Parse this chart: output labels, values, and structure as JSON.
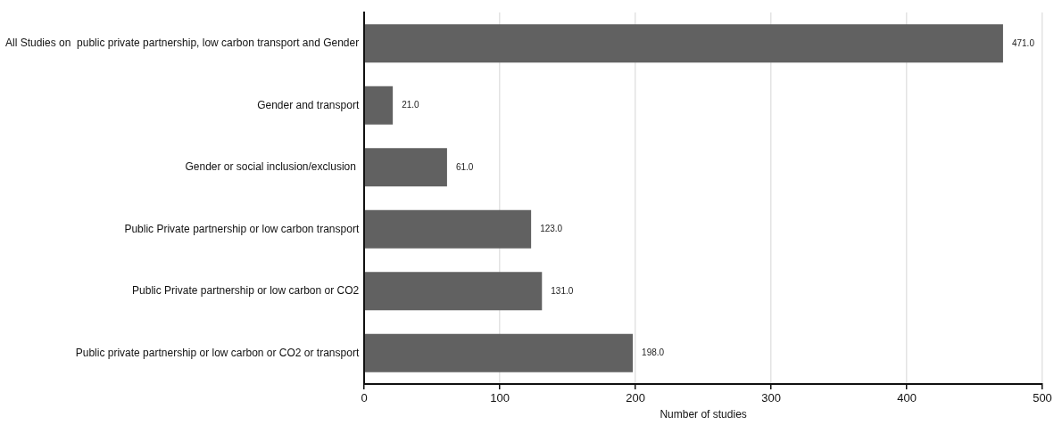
{
  "chart_data": {
    "type": "bar",
    "orientation": "horizontal",
    "xlabel": "Number of studies",
    "categories": [
      "All Studies on  public private partnership, low carbon transport and Gender",
      "Gender and transport",
      "Gender or social inclusion/exclusion ",
      "Public Private partnership or low carbon transport",
      "Public Private partnership or low carbon or CO2",
      "Public private partnership or low carbon or CO2 or transport"
    ],
    "values": [
      471,
      21,
      61,
      123,
      131,
      198
    ],
    "value_labels": [
      "471.0",
      "21.0",
      "61.0",
      "123.0",
      "131.0",
      "198.0"
    ],
    "color": "#616161",
    "xlim": [
      0,
      500
    ],
    "xticks": [
      0,
      100,
      200,
      300,
      400,
      500
    ],
    "grid": "x",
    "legend": false
  }
}
